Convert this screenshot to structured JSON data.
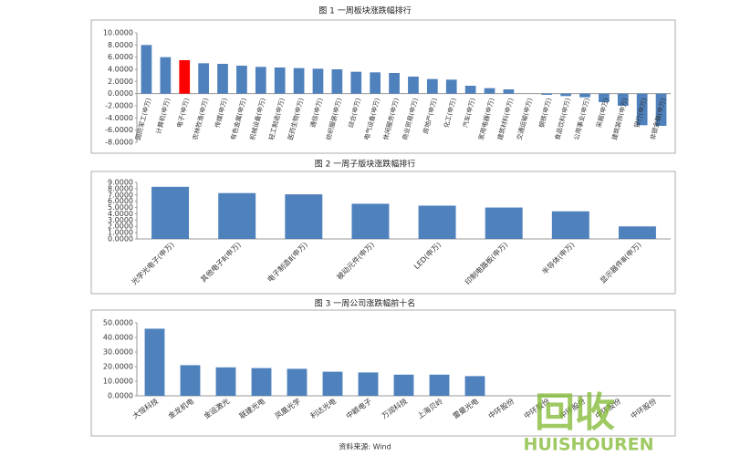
{
  "chart_data": [
    {
      "type": "bar",
      "title": "图 1 一周板块涨跌幅排行",
      "categories": [
        "国防军工(申万)",
        "计算机(申万)",
        "电子(申万)",
        "农林牧渔(申万)",
        "传媒(申万)",
        "有色金属(申万)",
        "机械设备(申万)",
        "轻工制造(申万)",
        "医药生物(申万)",
        "通信(申万)",
        "纺织服装(申万)",
        "综合(申万)",
        "电气设备(申万)",
        "休闲服务(申万)",
        "商业贸易(申万)",
        "房地产(申万)",
        "化工(申万)",
        "汽车(申万)",
        "家用电器(申万)",
        "建筑材料(申万)",
        "交通运输(申万)",
        "钢铁(申万)",
        "食品饮料(申万)",
        "公用事业(申万)",
        "采掘(申万)",
        "建筑装饰(申万)",
        "银行(申万)",
        "非银金融(申万)"
      ],
      "values": [
        8.0,
        6.0,
        5.5,
        5.0,
        4.9,
        4.6,
        4.4,
        4.3,
        4.2,
        4.1,
        4.0,
        3.6,
        3.5,
        3.4,
        2.8,
        2.4,
        2.3,
        1.3,
        0.9,
        0.7,
        0.0,
        -0.2,
        -0.4,
        -0.6,
        -1.4,
        -2.0,
        -5.2,
        -5.3
      ],
      "colors": [
        "#4f81bd",
        "#4f81bd",
        "#ff0000",
        "#4f81bd",
        "#4f81bd",
        "#4f81bd",
        "#4f81bd",
        "#4f81bd",
        "#4f81bd",
        "#4f81bd",
        "#4f81bd",
        "#4f81bd",
        "#4f81bd",
        "#4f81bd",
        "#4f81bd",
        "#4f81bd",
        "#4f81bd",
        "#4f81bd",
        "#4f81bd",
        "#4f81bd",
        "#4f81bd",
        "#4f81bd",
        "#4f81bd",
        "#4f81bd",
        "#4f81bd",
        "#4f81bd",
        "#4f81bd",
        "#4f81bd"
      ],
      "ylim": [
        -8,
        10
      ],
      "yticks": [
        {
          "value": 10,
          "label": "10.0000"
        },
        {
          "value": 8,
          "label": "8.0000"
        },
        {
          "value": 6,
          "label": "6.0000"
        },
        {
          "value": 4,
          "label": "4.0000"
        },
        {
          "value": 2,
          "label": "2.0000"
        },
        {
          "value": 0,
          "label": "0.0000"
        },
        {
          "value": -2,
          "label": "-2.0000"
        },
        {
          "value": -4,
          "label": "-4.0000"
        },
        {
          "value": -6,
          "label": "-6.0000"
        },
        {
          "value": -8,
          "label": "-8.0000"
        }
      ]
    },
    {
      "type": "bar",
      "title": "图 2 一周子版块涨跌幅排行",
      "categories": [
        "光学光电子(申万)",
        "其他电子Ⅱ(申万)",
        "电子制造Ⅱ(申万)",
        "被动元件(申万)",
        "LED(申万)",
        "印制电路板(申万)",
        "半导体(申万)",
        "显示器件Ⅲ(申万)"
      ],
      "values": [
        8.3,
        7.3,
        7.1,
        5.6,
        5.3,
        5.0,
        4.4,
        2.0
      ],
      "color": "#4f81bd",
      "ylim": [
        0,
        9
      ],
      "yticks": [
        {
          "value": 9,
          "label": "9.0000"
        },
        {
          "value": 8,
          "label": "8.0000"
        },
        {
          "value": 7,
          "label": "7.0000"
        },
        {
          "value": 6,
          "label": "6.0000"
        },
        {
          "value": 5,
          "label": "5.0000"
        },
        {
          "value": 4,
          "label": "4.0000"
        },
        {
          "value": 3,
          "label": "3.0000"
        },
        {
          "value": 2,
          "label": "2.0000"
        },
        {
          "value": 1,
          "label": "1.0000"
        },
        {
          "value": 0,
          "label": "0.0000"
        }
      ]
    },
    {
      "type": "bar",
      "title": "图 3 一周公司涨跌幅前十名",
      "categories": [
        "大恒科技",
        "金龙机电",
        "金运激光",
        "联建光电",
        "凤凰光学",
        "利达光电",
        "中颖电子",
        "万润科技",
        "上海贝岭",
        "雷曼光电",
        "中环股份",
        "中环股份",
        "中环股份",
        "中环股份",
        "中环股份"
      ],
      "values": [
        46,
        21,
        19.5,
        19,
        18.5,
        16.5,
        16,
        14.5,
        14.5,
        13.5,
        null,
        null,
        null,
        null,
        null
      ],
      "color": "#4f81bd",
      "ylim": [
        0,
        50
      ],
      "yticks": [
        {
          "value": 50,
          "label": "50.0000"
        },
        {
          "value": 40,
          "label": "40.0000"
        },
        {
          "value": 30,
          "label": "30.0000"
        },
        {
          "value": 20,
          "label": "20.0000"
        },
        {
          "value": 10,
          "label": "10.0000"
        },
        {
          "value": 0,
          "label": "0.0000"
        }
      ]
    }
  ],
  "source": "资料来源: Wind",
  "watermark": {
    "logo": "回收",
    "text": "HUISHOUREN"
  }
}
